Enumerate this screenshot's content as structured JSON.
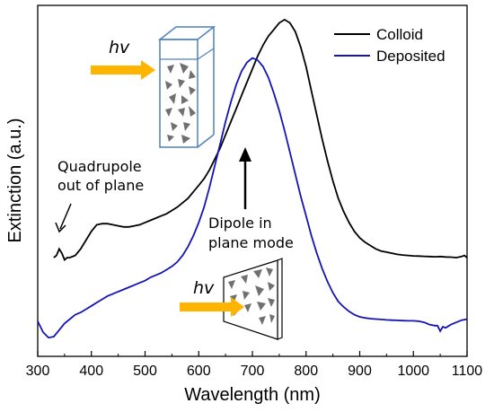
{
  "chart_data": {
    "type": "line",
    "xlabel": "Wavelength (nm)",
    "ylabel": "Extinction (a.u.)",
    "xlim": [
      300,
      1100
    ],
    "xticks": [
      "300",
      "400",
      "500",
      "600",
      "700",
      "800",
      "900",
      "1000",
      "1100"
    ],
    "y_ticks_labeled": false,
    "legend_position": "top-right",
    "series": [
      {
        "name": "Colloid",
        "color": "#000000",
        "x": [
          330,
          335,
          340,
          345,
          350,
          355,
          360,
          370,
          380,
          390,
          400,
          410,
          420,
          430,
          440,
          450,
          460,
          470,
          480,
          490,
          500,
          510,
          520,
          530,
          540,
          550,
          560,
          570,
          580,
          590,
          600,
          610,
          620,
          630,
          640,
          650,
          660,
          670,
          680,
          690,
          700,
          710,
          720,
          730,
          740,
          750,
          760,
          770,
          780,
          790,
          800,
          810,
          820,
          830,
          840,
          850,
          860,
          870,
          880,
          890,
          900,
          910,
          920,
          930,
          940,
          950,
          960,
          970,
          980,
          990,
          1000,
          1010,
          1020,
          1030,
          1040,
          1050,
          1060,
          1070,
          1080,
          1090,
          1095,
          1100
        ],
        "y": [
          0.3,
          0.31,
          0.34,
          0.32,
          0.29,
          0.3,
          0.3,
          0.31,
          0.34,
          0.38,
          0.42,
          0.45,
          0.455,
          0.455,
          0.45,
          0.445,
          0.44,
          0.44,
          0.445,
          0.45,
          0.46,
          0.47,
          0.48,
          0.49,
          0.5,
          0.515,
          0.53,
          0.55,
          0.57,
          0.6,
          0.63,
          0.66,
          0.7,
          0.75,
          0.8,
          0.86,
          0.92,
          0.98,
          1.04,
          1.1,
          1.16,
          1.22,
          1.27,
          1.31,
          1.34,
          1.37,
          1.385,
          1.37,
          1.33,
          1.26,
          1.17,
          1.06,
          0.95,
          0.84,
          0.74,
          0.65,
          0.57,
          0.51,
          0.46,
          0.42,
          0.39,
          0.37,
          0.355,
          0.34,
          0.33,
          0.325,
          0.32,
          0.315,
          0.312,
          0.31,
          0.308,
          0.307,
          0.306,
          0.305,
          0.304,
          0.305,
          0.303,
          0.302,
          0.3,
          0.305,
          0.31,
          0.3
        ]
      },
      {
        "name": "Deposited",
        "color": "#1414b4",
        "x": [
          300,
          310,
          320,
          330,
          340,
          350,
          360,
          370,
          380,
          390,
          400,
          410,
          420,
          430,
          440,
          450,
          460,
          470,
          480,
          490,
          500,
          510,
          520,
          530,
          540,
          550,
          560,
          570,
          580,
          590,
          600,
          610,
          620,
          630,
          640,
          650,
          660,
          670,
          680,
          690,
          700,
          710,
          720,
          730,
          740,
          750,
          760,
          770,
          780,
          790,
          800,
          810,
          820,
          830,
          840,
          850,
          860,
          870,
          880,
          890,
          900,
          910,
          920,
          930,
          940,
          950,
          960,
          970,
          980,
          990,
          1000,
          1010,
          1020,
          1030,
          1040,
          1045,
          1050,
          1055,
          1060,
          1070,
          1080,
          1090,
          1100
        ],
        "y": [
          0.01,
          -0.04,
          -0.065,
          -0.06,
          -0.03,
          0.0,
          0.02,
          0.04,
          0.05,
          0.065,
          0.08,
          0.095,
          0.11,
          0.125,
          0.135,
          0.145,
          0.155,
          0.165,
          0.175,
          0.185,
          0.195,
          0.21,
          0.22,
          0.23,
          0.245,
          0.26,
          0.28,
          0.31,
          0.35,
          0.4,
          0.46,
          0.53,
          0.62,
          0.72,
          0.82,
          0.92,
          1.01,
          1.09,
          1.15,
          1.19,
          1.21,
          1.2,
          1.17,
          1.12,
          1.05,
          0.97,
          0.88,
          0.78,
          0.68,
          0.58,
          0.49,
          0.4,
          0.32,
          0.25,
          0.19,
          0.14,
          0.1,
          0.075,
          0.055,
          0.04,
          0.03,
          0.025,
          0.022,
          0.02,
          0.018,
          0.016,
          0.015,
          0.014,
          0.013,
          0.012,
          0.012,
          0.01,
          0.005,
          -0.005,
          -0.01,
          -0.01,
          -0.035,
          -0.015,
          -0.02,
          -0.005,
          0.005,
          0.015,
          0.02
        ]
      }
    ],
    "annotations": [
      {
        "id": "quadrupole",
        "lines": [
          "Quadrupole",
          "out of plane"
        ]
      },
      {
        "id": "dipole",
        "lines": [
          "Dipole in",
          "plane mode"
        ]
      },
      {
        "id": "hv-top",
        "text": "hv"
      },
      {
        "id": "hv-bottom",
        "text": "hv"
      }
    ]
  },
  "colors": {
    "arrow_orange": "#ffb400",
    "cuvette_border": "#4f81bd",
    "particle_gray": "#707070"
  }
}
